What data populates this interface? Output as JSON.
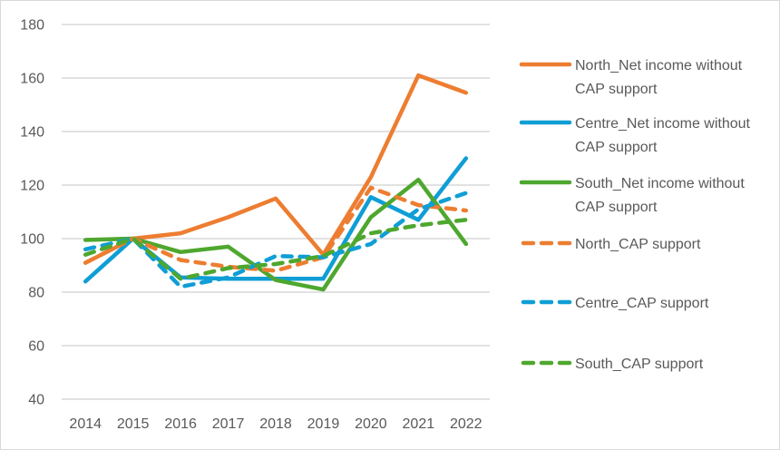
{
  "chart_data": {
    "type": "line",
    "title": "",
    "xlabel": "",
    "ylabel": "",
    "categories": [
      "2014",
      "2015",
      "2016",
      "2017",
      "2018",
      "2019",
      "2020",
      "2021",
      "2022"
    ],
    "ylim": [
      40,
      180
    ],
    "yticks": [
      40,
      60,
      80,
      100,
      120,
      140,
      160,
      180
    ],
    "grid": true,
    "legend_position": "right",
    "series": [
      {
        "name": "North_Net income without CAP support",
        "legend_lines": [
          "North_Net income without",
          "CAP support"
        ],
        "color": "#ED7D31",
        "style": "solid",
        "values": [
          91,
          100,
          102,
          108,
          115,
          94,
          123,
          161,
          154.5
        ]
      },
      {
        "name": "Centre_Net income without CAP support",
        "legend_lines": [
          "Centre_Net income without",
          "CAP support"
        ],
        "color": "#0F9ED5",
        "style": "solid",
        "values": [
          84,
          100,
          85.5,
          85,
          85,
          85,
          115.5,
          107,
          130
        ]
      },
      {
        "name": "South_Net income without CAP support",
        "legend_lines": [
          "South_Net income without",
          "CAP support"
        ],
        "color": "#4EA72E",
        "style": "solid",
        "values": [
          99.5,
          100,
          95,
          97,
          84.5,
          81,
          108,
          122,
          98
        ]
      },
      {
        "name": "North_CAP support",
        "legend_lines": [
          "North_CAP support"
        ],
        "color": "#ED7D31",
        "style": "dashed",
        "values": [
          91,
          100,
          92,
          89.5,
          88,
          93,
          119,
          112.5,
          110.5
        ]
      },
      {
        "name": "Centre_CAP support",
        "legend_lines": [
          "Centre_CAP support"
        ],
        "color": "#0F9ED5",
        "style": "dashed",
        "values": [
          96,
          100,
          82,
          85.5,
          93.5,
          93,
          98,
          111,
          117
        ]
      },
      {
        "name": "South_CAP support",
        "legend_lines": [
          "South_CAP support"
        ],
        "color": "#4EA72E",
        "style": "dashed",
        "values": [
          94,
          100,
          85,
          89,
          90.5,
          93.5,
          102,
          105,
          107
        ]
      }
    ]
  }
}
